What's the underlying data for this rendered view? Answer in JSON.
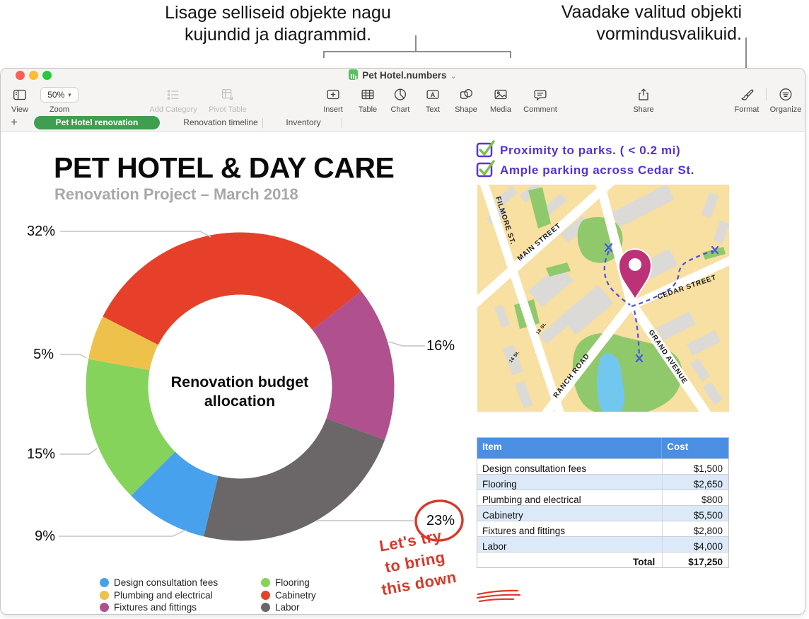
{
  "callouts": {
    "left_line1": "Lisage selliseid objekte nagu",
    "left_line2": "kujundid ja diagrammid.",
    "right_line1": "Vaadake valitud objekti",
    "right_line2": "vormindusvalikuid."
  },
  "window": {
    "title": "Pet Hotel.numbers",
    "title_chevron": "⌄",
    "zoom_value": "50%",
    "toolbar": [
      {
        "label": "View",
        "enabled": true
      },
      {
        "label": "Zoom",
        "enabled": true
      },
      {
        "label": "Add Category",
        "enabled": false
      },
      {
        "label": "Pivot Table",
        "enabled": false
      },
      {
        "label": "Insert",
        "enabled": true
      },
      {
        "label": "Table",
        "enabled": true
      },
      {
        "label": "Chart",
        "enabled": true
      },
      {
        "label": "Text",
        "enabled": true
      },
      {
        "label": "Shape",
        "enabled": true
      },
      {
        "label": "Media",
        "enabled": true
      },
      {
        "label": "Comment",
        "enabled": true
      },
      {
        "label": "Share",
        "enabled": true
      },
      {
        "label": "Format",
        "enabled": true
      },
      {
        "label": "Organize",
        "enabled": true
      }
    ],
    "tabs": {
      "add_label": "+",
      "items": [
        {
          "label": "Pet Hotel renovation",
          "active": true
        },
        {
          "label": "Renovation timeline",
          "active": false
        },
        {
          "label": "Inventory",
          "active": false
        }
      ]
    }
  },
  "sheet": {
    "title": "PET HOTEL & DAY CARE",
    "subtitle": "Renovation Project – March 2018"
  },
  "chart_data": {
    "type": "pie",
    "subtype": "donut",
    "title": "Renovation budget allocation",
    "center_label_lines": [
      "Renovation budget",
      "allocation"
    ],
    "start_angle_deg": -63,
    "total": 17250,
    "series": [
      {
        "name": "Cabinetry",
        "value": 5500,
        "pct": "32%",
        "color": "#e6402a"
      },
      {
        "name": "Fixtures and fittings",
        "value": 2800,
        "pct": "16%",
        "color": "#b0508e"
      },
      {
        "name": "Labor",
        "value": 4000,
        "pct": "23%",
        "color": "#6b6769"
      },
      {
        "name": "Design consultation fees",
        "value": 1500,
        "pct": "9%",
        "color": "#47a1ec"
      },
      {
        "name": "Flooring",
        "value": 2650,
        "pct": "15%",
        "color": "#85d35b"
      },
      {
        "name": "Plumbing and electrical",
        "value": 800,
        "pct": "5%",
        "color": "#eec14b"
      }
    ],
    "legend_columns": [
      [
        3,
        5,
        1
      ],
      [
        4,
        0,
        2
      ]
    ]
  },
  "checklist": [
    {
      "text": "Proximity to parks. ( < 0.2 mi)",
      "checked": true
    },
    {
      "text": "Ample parking across Cedar St.",
      "checked": true
    }
  ],
  "map": {
    "streets": [
      "FILMORE ST.",
      "MAIN STREET",
      "CEDAR STREET",
      "GRAND AVENUE",
      "RANCH ROAD",
      "18 St.",
      "16 St."
    ]
  },
  "table": {
    "headers": [
      "Item",
      "Cost"
    ],
    "rows": [
      {
        "item": "Design consultation fees",
        "cost": "$1,500"
      },
      {
        "item": "Flooring",
        "cost": "$2,650"
      },
      {
        "item": "Plumbing and electrical",
        "cost": "$800"
      },
      {
        "item": "Cabinetry",
        "cost": "$5,500"
      },
      {
        "item": "Fixtures and fittings",
        "cost": "$2,800"
      },
      {
        "item": "Labor",
        "cost": "$4,000"
      }
    ],
    "total_label": "Total",
    "total_value": "$17,250"
  },
  "annotations": {
    "note_lines": [
      "Let's try",
      "to bring",
      "this down"
    ],
    "circled_value": "23%",
    "red_color": "#d8382a",
    "handwriting_purple": "#5431d6",
    "check_green": "#7cc24a"
  },
  "colors": {
    "tab_active_green": "#3f9e4f",
    "table_header_blue": "#4a8fe2",
    "table_alt_row": "#dce9f8",
    "map_background": "#f8dfa2",
    "map_green": "#90c96c",
    "map_pond": "#72c7ee",
    "map_pin": "#bc3277",
    "route_blue": "#4a56e2"
  }
}
